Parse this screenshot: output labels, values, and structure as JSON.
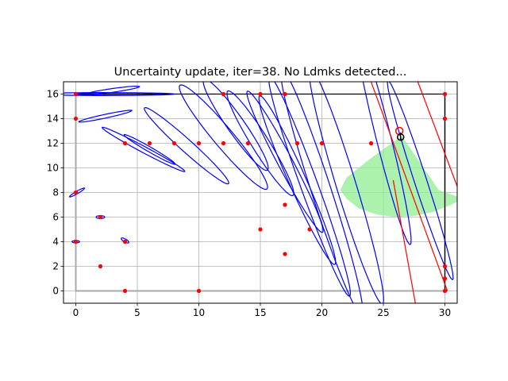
{
  "chart_data": {
    "type": "scatter",
    "title": "Uncertainty update, iter=38. No Ldmks detected...",
    "xlabel": "",
    "ylabel": "",
    "xlim": [
      -1,
      31
    ],
    "ylim": [
      -1,
      17
    ],
    "x_ticks": [
      0,
      5,
      10,
      15,
      20,
      25,
      30
    ],
    "y_ticks": [
      0,
      2,
      4,
      6,
      8,
      10,
      12,
      14,
      16
    ],
    "grid": true,
    "legend": "none",
    "colors": {
      "landmark": "#ff0000",
      "ellipse": "#0000ff",
      "wall_gray": "#aaaaaa",
      "wall_black": "#000000",
      "fov": "#90ee90",
      "trajectory": "#ff0000",
      "robot": "#000000"
    },
    "walls": {
      "gray_path": [
        [
          0,
          16
        ],
        [
          0,
          0
        ],
        [
          30,
          0
        ],
        [
          30,
          16
        ]
      ],
      "black_path": [
        [
          0,
          16
        ],
        [
          30,
          16
        ],
        [
          30,
          0
        ]
      ]
    },
    "landmarks": [
      [
        0,
        16
      ],
      [
        0,
        14
      ],
      [
        0,
        8
      ],
      [
        0,
        4
      ],
      [
        2,
        6
      ],
      [
        2,
        2
      ],
      [
        4,
        4
      ],
      [
        4,
        0
      ],
      [
        4,
        12
      ],
      [
        6,
        12
      ],
      [
        8,
        12
      ],
      [
        10,
        12
      ],
      [
        10,
        0
      ],
      [
        12,
        12
      ],
      [
        14,
        12
      ],
      [
        12,
        16
      ],
      [
        15,
        16
      ],
      [
        17,
        16
      ],
      [
        15,
        5
      ],
      [
        17,
        7
      ],
      [
        17,
        3
      ],
      [
        18,
        12
      ],
      [
        19,
        5
      ],
      [
        20,
        12
      ],
      [
        24,
        12
      ],
      [
        30,
        16
      ],
      [
        30,
        14
      ],
      [
        30,
        2
      ],
      [
        30,
        1
      ],
      [
        30,
        0
      ]
    ],
    "uncertainty_ellipses": [
      {
        "center": [
          2,
          16
        ],
        "radii": [
          5,
          0.12
        ],
        "angle": 0
      },
      {
        "center": [
          4,
          16
        ],
        "radii": [
          4,
          0.1
        ],
        "angle": 0
      },
      {
        "center": [
          3,
          16.3
        ],
        "radii": [
          2.2,
          0.15
        ],
        "angle": 8
      },
      {
        "center": [
          2.4,
          14.2
        ],
        "radii": [
          2.2,
          0.15
        ],
        "angle": 12
      },
      {
        "center": [
          0.1,
          8
        ],
        "radii": [
          0.7,
          0.1
        ],
        "angle": 30
      },
      {
        "center": [
          0,
          4
        ],
        "radii": [
          0.3,
          0.1
        ],
        "angle": 0
      },
      {
        "center": [
          2,
          6
        ],
        "radii": [
          0.35,
          0.12
        ],
        "angle": 0
      },
      {
        "center": [
          4,
          4.1
        ],
        "radii": [
          0.35,
          0.12
        ],
        "angle": -30
      },
      {
        "center": [
          6,
          11.5
        ],
        "radii": [
          2.4,
          0.2
        ],
        "angle": -30
      },
      {
        "center": [
          5.5,
          11.5
        ],
        "radii": [
          3.8,
          0.25
        ],
        "angle": -28
      },
      {
        "center": [
          9,
          11.8
        ],
        "radii": [
          4.6,
          0.5
        ],
        "angle": -42
      },
      {
        "center": [
          12,
          12.5
        ],
        "radii": [
          5.5,
          0.8
        ],
        "angle": -50
      },
      {
        "center": [
          13,
          13.5
        ],
        "radii": [
          4.5,
          0.7
        ],
        "angle": -55
      },
      {
        "center": [
          15,
          12
        ],
        "radii": [
          5,
          0.7
        ],
        "angle": -58
      },
      {
        "center": [
          17,
          10.5
        ],
        "radii": [
          6.5,
          0.6
        ],
        "angle": -62
      },
      {
        "center": [
          18,
          9
        ],
        "radii": [
          7.5,
          0.7
        ],
        "angle": -66
      },
      {
        "center": [
          19,
          8.5
        ],
        "radii": [
          9.5,
          0.7
        ],
        "angle": -70
      },
      {
        "center": [
          20,
          8
        ],
        "radii": [
          10.5,
          0.8
        ],
        "angle": -72
      },
      {
        "center": [
          22,
          8.5
        ],
        "radii": [
          10,
          0.8
        ],
        "angle": -73
      },
      {
        "center": [
          25,
          12.5
        ],
        "radii": [
          9,
          0.6
        ],
        "angle": -76
      },
      {
        "center": [
          28,
          9
        ],
        "radii": [
          8.5,
          0.5
        ],
        "angle": -72
      }
    ],
    "fov_polygon": [
      [
        26.5,
        12.6
      ],
      [
        29.5,
        8.2
      ],
      [
        31.5,
        7.5
      ],
      [
        30.5,
        7
      ],
      [
        29,
        6.4
      ],
      [
        27.5,
        6.1
      ],
      [
        26,
        6
      ],
      [
        24.5,
        6.2
      ],
      [
        23,
        6.7
      ],
      [
        22,
        7.5
      ],
      [
        21.5,
        8.2
      ],
      [
        22,
        9.2
      ],
      [
        24,
        10.8
      ]
    ],
    "trajectory_lines": [
      [
        [
          24,
          17
        ],
        [
          30.2,
          0
        ]
      ],
      [
        [
          27.8,
          17
        ],
        [
          31,
          8.5
        ]
      ],
      [
        [
          25.8,
          9
        ],
        [
          27.6,
          -1
        ]
      ]
    ],
    "robot_estimate": {
      "x": 26.3,
      "y": 13
    },
    "robot_true": {
      "x": 26.4,
      "y": 12.5
    }
  }
}
